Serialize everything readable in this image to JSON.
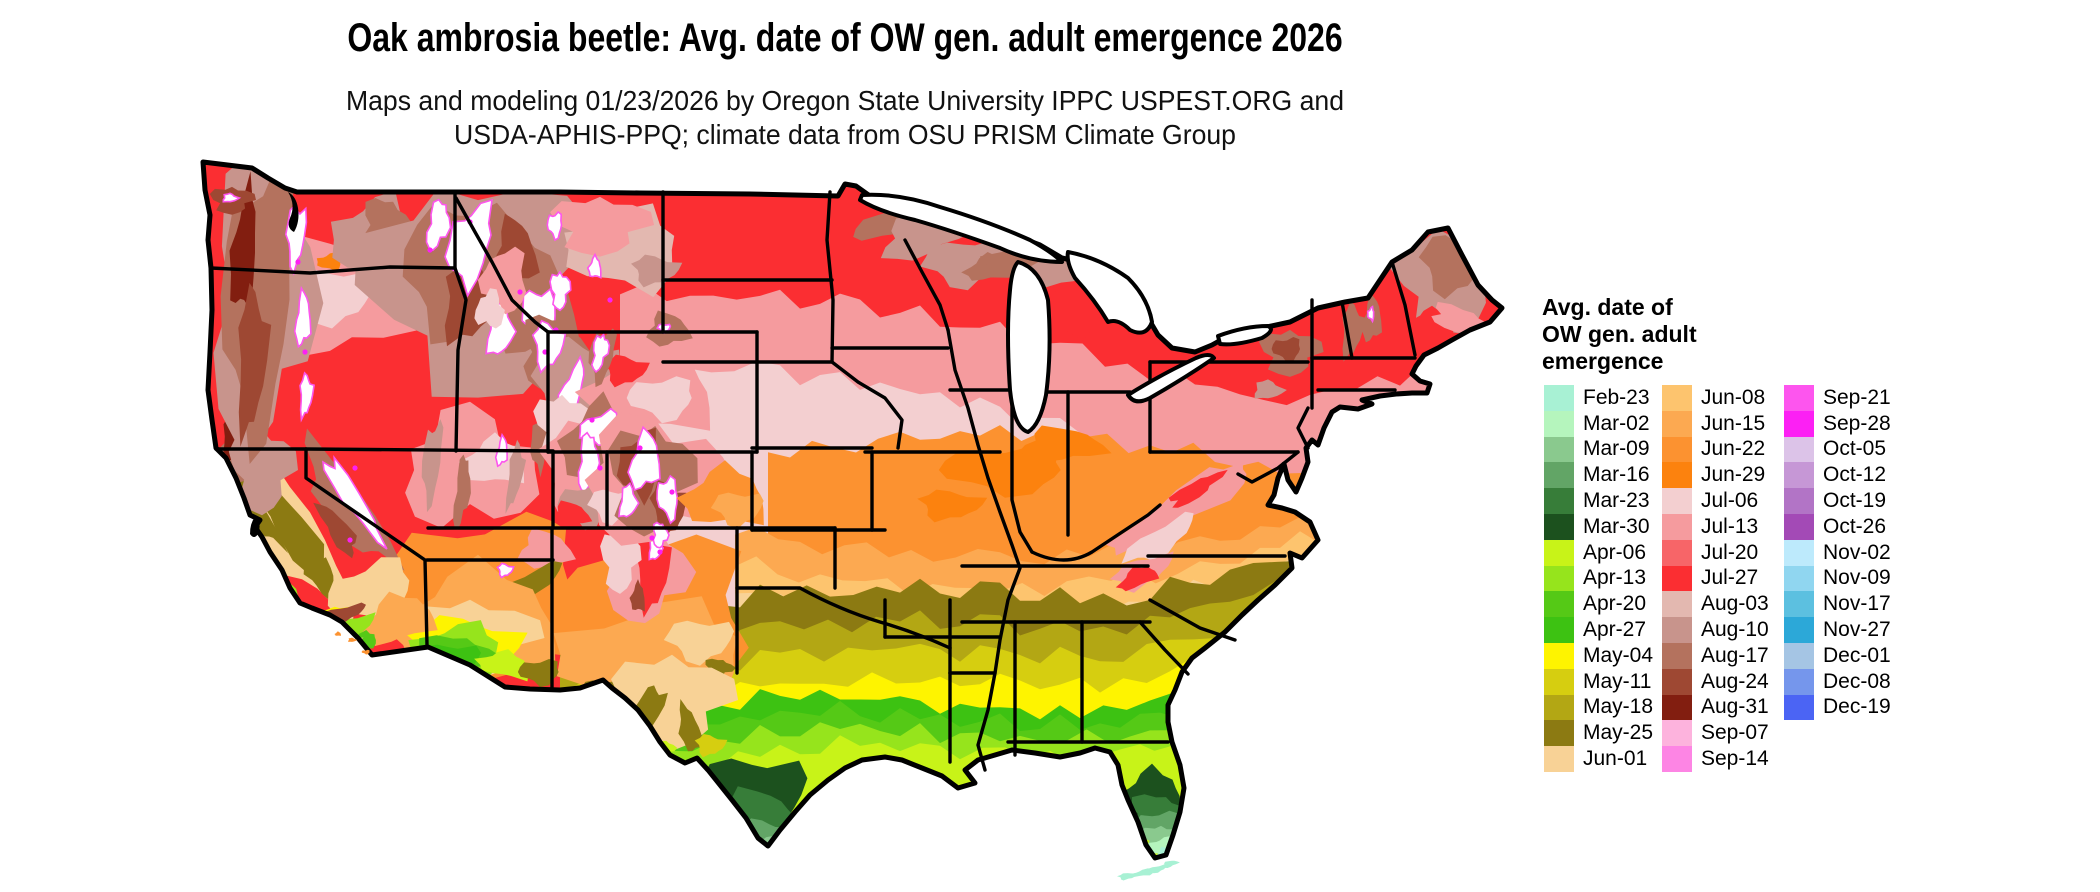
{
  "title": "Oak ambrosia beetle: Avg. date of OW gen. adult emergence 2026",
  "subtitle_line1": "Maps and modeling 01/23/2026 by Oregon State University IPPC USPEST.ORG and",
  "subtitle_line2": "USDA-APHIS-PPQ; climate data from OSU PRISM Climate Group",
  "legend": {
    "title_lines": [
      "Avg. date of",
      "OW gen. adult",
      "emergence"
    ],
    "columns": [
      {
        "entries": [
          {
            "date": "Feb-23",
            "color": "#a8f1d4"
          },
          {
            "date": "Mar-02",
            "color": "#b5f5bd"
          },
          {
            "date": "Mar-09",
            "color": "#8ac98e"
          },
          {
            "date": "Mar-16",
            "color": "#62a566"
          },
          {
            "date": "Mar-23",
            "color": "#377d39"
          },
          {
            "date": "Mar-30",
            "color": "#1c511e"
          },
          {
            "date": "Apr-06",
            "color": "#c8f318"
          },
          {
            "date": "Apr-13",
            "color": "#96e41c"
          },
          {
            "date": "Apr-20",
            "color": "#55c916"
          },
          {
            "date": "Apr-27",
            "color": "#3dc212"
          },
          {
            "date": "May-04",
            "color": "#fef400"
          },
          {
            "date": "May-11",
            "color": "#d6ce10"
          },
          {
            "date": "May-18",
            "color": "#b3a714"
          },
          {
            "date": "May-25",
            "color": "#8c7a12"
          },
          {
            "date": "Jun-01",
            "color": "#f8d296"
          }
        ]
      },
      {
        "entries": [
          {
            "date": "Jun-08",
            "color": "#fdc46e"
          },
          {
            "date": "Jun-15",
            "color": "#fca951"
          },
          {
            "date": "Jun-22",
            "color": "#fc9230"
          },
          {
            "date": "Jun-29",
            "color": "#fc820e"
          },
          {
            "date": "Jul-06",
            "color": "#f3cfd0"
          },
          {
            "date": "Jul-13",
            "color": "#f59b9e"
          },
          {
            "date": "Jul-20",
            "color": "#f76568"
          },
          {
            "date": "Jul-27",
            "color": "#fb2e32"
          },
          {
            "date": "Aug-03",
            "color": "#e3b8b0"
          },
          {
            "date": "Aug-10",
            "color": "#c8948c"
          },
          {
            "date": "Aug-17",
            "color": "#b4725e"
          },
          {
            "date": "Aug-24",
            "color": "#9e4833"
          },
          {
            "date": "Aug-31",
            "color": "#821e10"
          },
          {
            "date": "Sep-07",
            "color": "#fdb3dd"
          },
          {
            "date": "Sep-14",
            "color": "#fd85e4"
          }
        ]
      },
      {
        "entries": [
          {
            "date": "Sep-21",
            "color": "#fd55ee"
          },
          {
            "date": "Sep-28",
            "color": "#fc20f4"
          },
          {
            "date": "Oct-05",
            "color": "#dcc3e8"
          },
          {
            "date": "Oct-12",
            "color": "#c697d6"
          },
          {
            "date": "Oct-19",
            "color": "#b274c6"
          },
          {
            "date": "Oct-26",
            "color": "#a34ab6"
          },
          {
            "date": "Nov-02",
            "color": "#bdeafc"
          },
          {
            "date": "Nov-09",
            "color": "#90d6f0"
          },
          {
            "date": "Nov-17",
            "color": "#5cc0e0"
          },
          {
            "date": "Nov-27",
            "color": "#2ca8d8"
          },
          {
            "date": "Dec-01",
            "color": "#a5c5e4"
          },
          {
            "date": "Dec-08",
            "color": "#7596ec"
          },
          {
            "date": "Dec-19",
            "color": "#4b64f4"
          }
        ]
      }
    ]
  }
}
